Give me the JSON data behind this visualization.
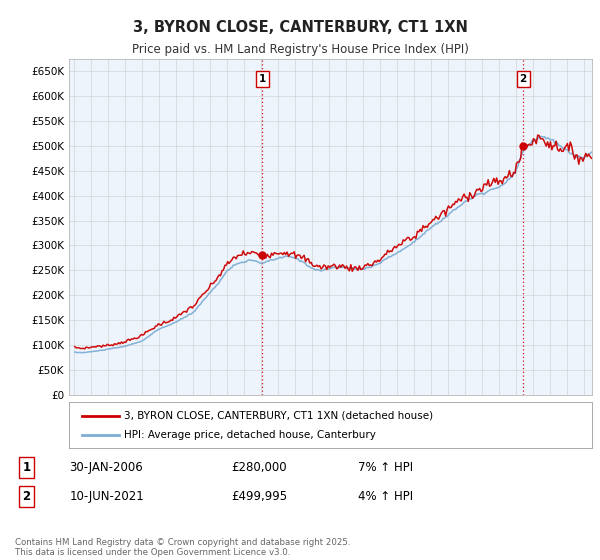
{
  "title": "3, BYRON CLOSE, CANTERBURY, CT1 1XN",
  "subtitle": "Price paid vs. HM Land Registry's House Price Index (HPI)",
  "legend_label_red": "3, BYRON CLOSE, CANTERBURY, CT1 1XN (detached house)",
  "legend_label_blue": "HPI: Average price, detached house, Canterbury",
  "sale1_label": "1",
  "sale1_date": "30-JAN-2006",
  "sale1_price": "£280,000",
  "sale1_hpi": "7% ↑ HPI",
  "sale2_label": "2",
  "sale2_date": "10-JUN-2021",
  "sale2_price": "£499,995",
  "sale2_hpi": "4% ↑ HPI",
  "footer": "Contains HM Land Registry data © Crown copyright and database right 2025.\nThis data is licensed under the Open Government Licence v3.0.",
  "ylim": [
    0,
    675000
  ],
  "color_red": "#cc0000",
  "color_blue": "#7dadd4",
  "color_fill_blue": "#ddeeff",
  "color_grid": "#cccccc",
  "color_vline": "#cc0000",
  "background": "#ffffff",
  "plot_bg": "#eef4fb",
  "sale1_year": 2006.08,
  "sale2_year": 2021.44,
  "sale1_value": 280000,
  "sale2_value": 499995
}
